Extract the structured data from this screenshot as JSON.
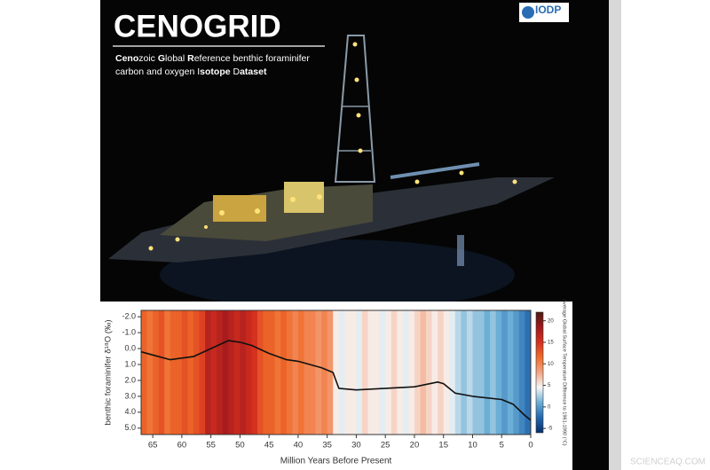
{
  "poster": {
    "title": "CENOGRID",
    "subtitle_lines": [
      [
        "Ceno",
        "zoic ",
        "G",
        "lobal ",
        "R",
        "eference benthic foraminifer"
      ],
      [
        "carbon and oxygen ",
        "I",
        "sotope ",
        "D",
        "ataset"
      ]
    ],
    "logo": "IODP",
    "watermark": "SCIENCEAQ.COM"
  },
  "chart_data": {
    "type": "line",
    "xlabel": "Million Years Before Present",
    "ylabel": "benthic foraminifer δ¹⁸O (‰)",
    "x": [
      67,
      65,
      62,
      60,
      58,
      55,
      52,
      50,
      48,
      45,
      42,
      40,
      38,
      36,
      34,
      33,
      30,
      25,
      20,
      16,
      15,
      13,
      10,
      5,
      3,
      1,
      0
    ],
    "values": [
      0.2,
      0.4,
      0.7,
      0.6,
      0.5,
      0.0,
      -0.5,
      -0.4,
      -0.2,
      0.3,
      0.7,
      0.8,
      1.0,
      1.2,
      1.5,
      2.5,
      2.6,
      2.5,
      2.4,
      2.1,
      2.2,
      2.8,
      3.0,
      3.2,
      3.5,
      4.2,
      4.5
    ],
    "color": "#111111",
    "xlim": [
      67,
      0
    ],
    "xticks": [
      65,
      60,
      55,
      50,
      45,
      40,
      35,
      30,
      25,
      20,
      15,
      10,
      5,
      0
    ],
    "ylim": [
      -2.4,
      5.4
    ],
    "yticks": [
      {
        "value": -2,
        "label": "-2.0"
      },
      {
        "value": -1,
        "label": "-1.0"
      },
      {
        "value": 0,
        "label": "0.0"
      },
      {
        "value": 1,
        "label": "1.0"
      },
      {
        "value": 2,
        "label": "2.0"
      },
      {
        "value": 3,
        "label": "3.0"
      },
      {
        "value": 4,
        "label": "4.0"
      },
      {
        "value": 5,
        "label": "5.0"
      }
    ],
    "stripes": {
      "bins": [
        67,
        66,
        65,
        64,
        63,
        62,
        61,
        60,
        59,
        58,
        57,
        56,
        55,
        54,
        53,
        52,
        51,
        50,
        49,
        48,
        47,
        46,
        45,
        44,
        43,
        42,
        41,
        40,
        39,
        38,
        37,
        36,
        35,
        34,
        33,
        32,
        31,
        30,
        29,
        28,
        27,
        26,
        25,
        24,
        23,
        22,
        21,
        20,
        19,
        18,
        17,
        16,
        15,
        14,
        13,
        12,
        11,
        10,
        9,
        8,
        7,
        6,
        5,
        4,
        3,
        2,
        1,
        0
      ],
      "values": [
        12,
        11,
        12,
        13,
        11,
        12,
        12,
        13,
        12,
        13,
        14,
        17,
        16,
        17,
        18,
        17,
        16,
        17,
        16,
        15,
        13,
        12,
        12,
        11,
        12,
        11,
        10,
        11,
        10,
        10,
        9,
        10,
        9,
        5,
        4,
        5,
        5,
        4,
        6,
        5,
        5,
        4,
        5,
        6,
        5,
        4,
        5,
        6,
        7,
        6,
        5,
        6,
        5,
        4,
        3,
        2,
        3,
        2,
        2,
        1,
        2,
        1,
        0,
        1,
        0,
        -1,
        -2
      ]
    },
    "colorbar": {
      "label": "Average Global Surface Temperature Difference to 1961-1990 (°C)",
      "zlim": [
        -6,
        22
      ],
      "ticks": [
        20,
        15,
        10,
        5,
        0,
        -5
      ],
      "colors": [
        "#08306b",
        "#2166ac",
        "#6baed6",
        "#f7f7f7",
        "#f4a582",
        "#ef6c2a",
        "#d6301f",
        "#a0191d",
        "#4a1a10"
      ]
    }
  }
}
